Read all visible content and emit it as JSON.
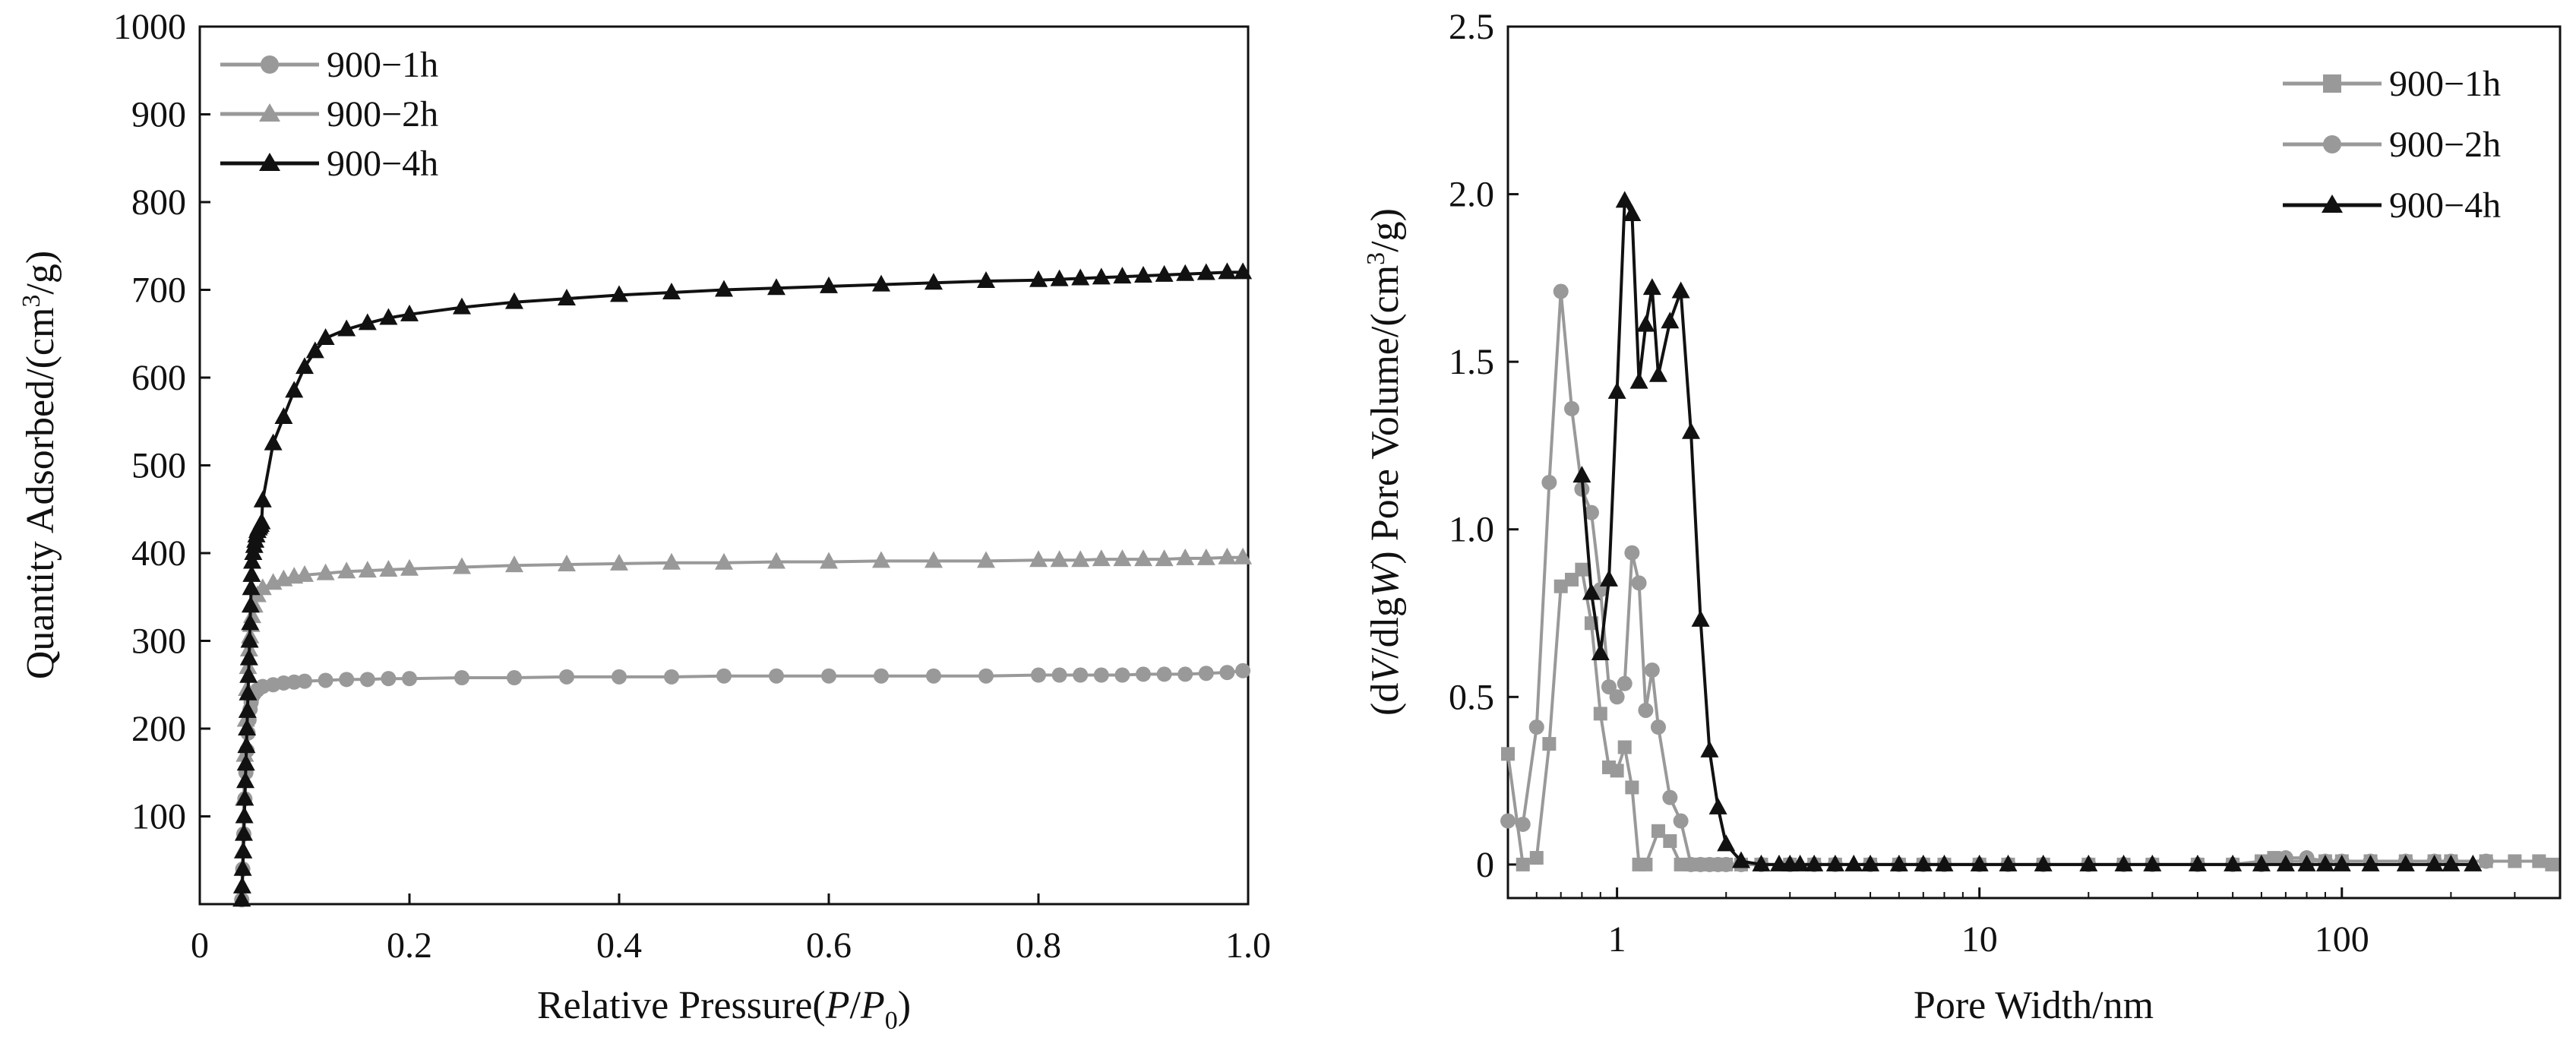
{
  "chart_data": [
    {
      "type": "line",
      "xlabel": {
        "main": "Relative Pressure(",
        "italic_p": "P",
        "slash": "/",
        "italic_p2": "P",
        "sub": "0",
        "close": ")"
      },
      "ylabel": {
        "main": "Quantity Adsorbed/(cm",
        "sup": "3",
        "end": "/g)"
      },
      "xlim": [
        0,
        1.0
      ],
      "ylim": [
        0,
        1000
      ],
      "xticks": [
        0,
        0.2,
        0.4,
        0.6,
        0.8,
        1.0
      ],
      "xtick_labels": [
        "0",
        "0.2",
        "0.4",
        "0.6",
        "0.8",
        "1.0"
      ],
      "yticks": [
        100,
        200,
        300,
        400,
        500,
        600,
        700,
        800,
        900,
        1000
      ],
      "ytick_labels": [
        "100",
        "200",
        "300",
        "400",
        "500",
        "600",
        "700",
        "800",
        "900",
        "1000"
      ],
      "legend_position": "top-left",
      "grid": false,
      "series": [
        {
          "name": "900−1h",
          "marker": "circle",
          "color": "#999999",
          "x": [
            0.04,
            0.041,
            0.042,
            0.043,
            0.044,
            0.045,
            0.046,
            0.047,
            0.048,
            0.049,
            0.05,
            0.052,
            0.055,
            0.06,
            0.07,
            0.08,
            0.09,
            0.1,
            0.12,
            0.14,
            0.16,
            0.18,
            0.2,
            0.25,
            0.3,
            0.35,
            0.4,
            0.45,
            0.5,
            0.55,
            0.6,
            0.65,
            0.7,
            0.75,
            0.8,
            0.82,
            0.84,
            0.86,
            0.88,
            0.9,
            0.92,
            0.94,
            0.96,
            0.98,
            0.995
          ],
          "y": [
            5,
            40,
            80,
            120,
            150,
            175,
            195,
            210,
            222,
            230,
            236,
            240,
            244,
            248,
            250,
            252,
            253,
            254,
            255,
            256,
            256,
            257,
            257,
            258,
            258,
            259,
            259,
            259,
            260,
            260,
            260,
            260,
            260,
            260,
            261,
            261,
            261,
            261,
            261,
            262,
            262,
            262,
            263,
            264,
            266
          ]
        },
        {
          "name": "900−2h",
          "marker": "triangle",
          "color": "#999999",
          "x": [
            0.04,
            0.041,
            0.042,
            0.043,
            0.044,
            0.045,
            0.046,
            0.047,
            0.048,
            0.049,
            0.05,
            0.052,
            0.055,
            0.06,
            0.07,
            0.08,
            0.09,
            0.1,
            0.12,
            0.14,
            0.16,
            0.18,
            0.2,
            0.25,
            0.3,
            0.35,
            0.4,
            0.45,
            0.5,
            0.55,
            0.6,
            0.65,
            0.7,
            0.75,
            0.8,
            0.82,
            0.84,
            0.86,
            0.88,
            0.9,
            0.92,
            0.94,
            0.96,
            0.98,
            0.995
          ],
          "y": [
            5,
            60,
            120,
            170,
            210,
            245,
            270,
            290,
            305,
            318,
            328,
            340,
            352,
            360,
            366,
            370,
            373,
            375,
            377,
            379,
            380,
            381,
            382,
            384,
            386,
            387,
            388,
            389,
            389,
            390,
            390,
            391,
            391,
            391,
            392,
            392,
            392,
            393,
            393,
            393,
            393,
            394,
            394,
            395,
            395
          ]
        },
        {
          "name": "900−4h",
          "marker": "triangle",
          "color": "#111111",
          "x": [
            0.04,
            0.0405,
            0.041,
            0.0415,
            0.042,
            0.0425,
            0.043,
            0.0435,
            0.044,
            0.0445,
            0.045,
            0.0455,
            0.046,
            0.0465,
            0.047,
            0.0475,
            0.048,
            0.0485,
            0.049,
            0.0495,
            0.05,
            0.051,
            0.052,
            0.053,
            0.054,
            0.055,
            0.056,
            0.057,
            0.058,
            0.059,
            0.06,
            0.07,
            0.08,
            0.09,
            0.1,
            0.11,
            0.12,
            0.14,
            0.16,
            0.18,
            0.2,
            0.25,
            0.3,
            0.35,
            0.4,
            0.45,
            0.5,
            0.55,
            0.6,
            0.65,
            0.7,
            0.75,
            0.8,
            0.82,
            0.84,
            0.86,
            0.88,
            0.9,
            0.92,
            0.94,
            0.96,
            0.98,
            0.995
          ],
          "y": [
            5,
            20,
            40,
            60,
            80,
            100,
            120,
            140,
            160,
            180,
            200,
            220,
            240,
            260,
            280,
            300,
            320,
            340,
            360,
            375,
            390,
            400,
            408,
            414,
            420,
            425,
            428,
            430,
            432,
            435,
            460,
            525,
            555,
            585,
            612,
            630,
            645,
            655,
            662,
            668,
            672,
            680,
            686,
            690,
            694,
            697,
            700,
            702,
            704,
            706,
            708,
            710,
            711,
            712,
            713,
            714,
            715,
            716,
            717,
            718,
            719,
            720,
            720
          ]
        }
      ]
    },
    {
      "type": "line",
      "xscale": "log",
      "xlabel": {
        "main": "Pore Width/nm"
      },
      "ylabel": {
        "pre": "(d",
        "v": "V",
        "mid": "/dlg",
        "w": "W",
        "post": ")  Pore Volume/(cm",
        "sup": "3",
        "end": "/g)"
      },
      "xlim": [
        0.5,
        400
      ],
      "ylim": [
        -0.1,
        2.5
      ],
      "xticks": [
        1,
        10,
        100
      ],
      "xtick_labels": [
        "1",
        "10",
        "100"
      ],
      "yticks": [
        0,
        0.5,
        1.0,
        1.5,
        2.0,
        2.5
      ],
      "ytick_labels": [
        "0",
        "0.5",
        "1.0",
        "1.5",
        "2.0",
        "2.5"
      ],
      "legend_position": "top-right",
      "grid": false,
      "series": [
        {
          "name": "900−1h",
          "marker": "square",
          "color": "#999999",
          "x": [
            0.5,
            0.55,
            0.6,
            0.65,
            0.7,
            0.75,
            0.8,
            0.85,
            0.9,
            0.95,
            1.0,
            1.05,
            1.1,
            1.15,
            1.2,
            1.3,
            1.4,
            1.5,
            1.6,
            1.7,
            1.8,
            1.9,
            2.0,
            2.2,
            2.5,
            3.0,
            3.5,
            4,
            5,
            6,
            7,
            8,
            10,
            12,
            15,
            20,
            25,
            30,
            40,
            50,
            60,
            65,
            70,
            80,
            90,
            100,
            120,
            150,
            180,
            200,
            250,
            300,
            350,
            380
          ],
          "y": [
            0.33,
            0.0,
            0.02,
            0.36,
            0.83,
            0.85,
            0.88,
            0.72,
            0.45,
            0.29,
            0.28,
            0.35,
            0.23,
            0.0,
            0.0,
            0.1,
            0.07,
            0.0,
            0.0,
            0.0,
            0.0,
            0.0,
            0.0,
            0.0,
            0.0,
            0.0,
            0.0,
            0.0,
            0.0,
            0.0,
            0.0,
            0.0,
            0.0,
            0.0,
            0.0,
            0.0,
            0.0,
            0.0,
            0.0,
            0.0,
            0.01,
            0.02,
            0.01,
            0.01,
            0.01,
            0.01,
            0.01,
            0.01,
            0.01,
            0.01,
            0.01,
            0.01,
            0.01,
            0.0
          ]
        },
        {
          "name": "900−2h",
          "marker": "circle",
          "color": "#999999",
          "x": [
            0.5,
            0.55,
            0.6,
            0.65,
            0.7,
            0.75,
            0.8,
            0.85,
            0.9,
            0.95,
            1.0,
            1.05,
            1.1,
            1.15,
            1.2,
            1.25,
            1.3,
            1.4,
            1.5,
            1.6,
            1.7,
            1.8,
            1.9,
            2.0,
            2.2,
            2.5,
            3.0,
            3.5,
            4,
            5,
            6,
            7,
            8,
            10,
            12,
            15,
            20,
            25,
            30,
            40,
            50,
            60,
            70,
            80,
            90,
            100,
            120,
            150,
            180,
            200,
            250
          ],
          "y": [
            0.13,
            0.12,
            0.41,
            1.14,
            1.71,
            1.36,
            1.12,
            1.05,
            0.82,
            0.53,
            0.5,
            0.54,
            0.93,
            0.84,
            0.46,
            0.58,
            0.41,
            0.2,
            0.13,
            0.0,
            0.0,
            0.0,
            0.0,
            0.0,
            0.0,
            0.0,
            0.0,
            0.0,
            0.0,
            0.0,
            0.0,
            0.0,
            0.0,
            0.0,
            0.0,
            0.0,
            0.0,
            0.0,
            0.0,
            0.0,
            0.0,
            0.0,
            0.02,
            0.02,
            0.01,
            0.01,
            0.01,
            0.01,
            0.01,
            0.01,
            0.01
          ]
        },
        {
          "name": "900−4h",
          "marker": "triangle",
          "color": "#111111",
          "x": [
            0.8,
            0.85,
            0.9,
            0.95,
            1.0,
            1.05,
            1.1,
            1.15,
            1.2,
            1.25,
            1.3,
            1.4,
            1.5,
            1.6,
            1.7,
            1.8,
            1.9,
            2.0,
            2.2,
            2.5,
            2.8,
            3.0,
            3.2,
            3.5,
            4.0,
            4.5,
            5,
            6,
            7,
            8,
            10,
            12,
            15,
            20,
            25,
            30,
            40,
            50,
            60,
            70,
            80,
            90,
            100,
            120,
            150,
            180,
            200,
            230
          ],
          "y": [
            1.16,
            0.81,
            0.63,
            0.85,
            1.41,
            1.98,
            1.94,
            1.44,
            1.61,
            1.72,
            1.46,
            1.62,
            1.71,
            1.29,
            0.73,
            0.34,
            0.17,
            0.06,
            0.01,
            0.0,
            0.0,
            0.0,
            0.0,
            0.0,
            0.0,
            0.0,
            0.0,
            0.0,
            0.0,
            0.0,
            0.0,
            0.0,
            0.0,
            0.0,
            0.0,
            0.0,
            0.0,
            0.0,
            0.0,
            0.0,
            0.0,
            0.0,
            0.0,
            0.0,
            0.0,
            0.0,
            0.0,
            0.0
          ]
        }
      ]
    }
  ]
}
